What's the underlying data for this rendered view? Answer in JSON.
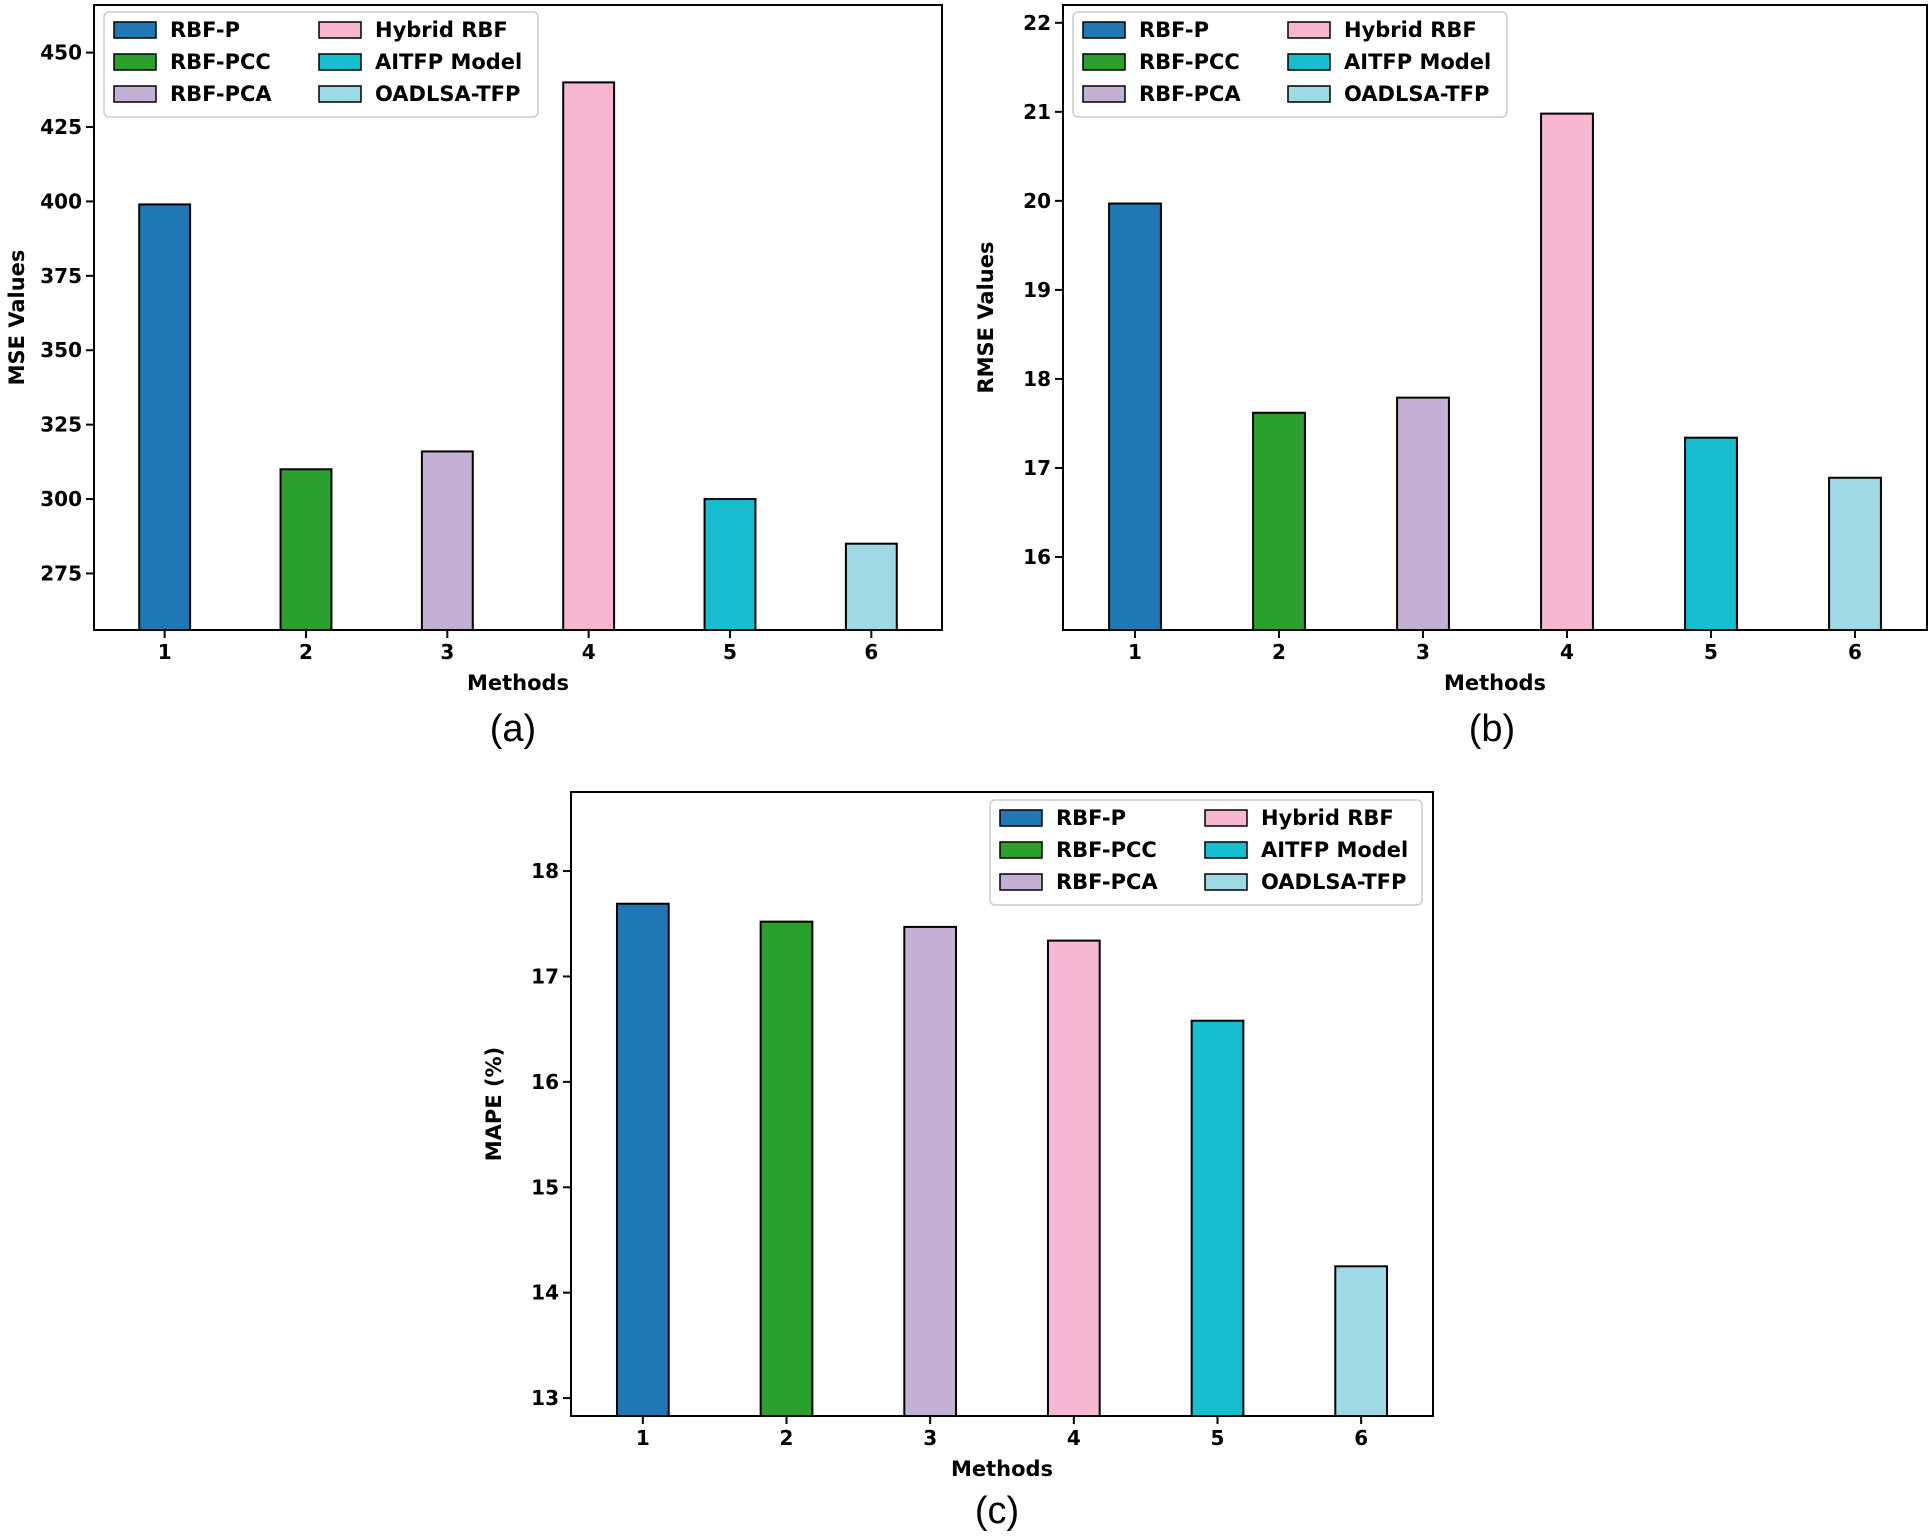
{
  "legend_colors": {
    "RBF-P": "#1f77b4",
    "RBF-PCC": "#2ca02c",
    "RBF-PCA": "#c5b0d5",
    "Hybrid RBF": "#f7b6d2",
    "AITFP Model": "#17becf",
    "OADLSA-TFP": "#9edae5"
  },
  "chart_data": [
    {
      "panel": "(a)",
      "type": "bar",
      "categories": [
        "1",
        "2",
        "3",
        "4",
        "5",
        "6"
      ],
      "series_names": [
        "RBF-P",
        "RBF-PCC",
        "RBF-PCA",
        "Hybrid RBF",
        "AITFP Model",
        "OADLSA-TFP"
      ],
      "values": [
        399,
        310,
        316,
        440,
        300,
        285
      ],
      "xlabel": "Methods",
      "ylabel": "MSE Values",
      "ylim": [
        256,
        466
      ],
      "yticks": [
        275,
        300,
        325,
        350,
        375,
        400,
        425,
        450
      ],
      "legend": "top-left, 2 columns"
    },
    {
      "panel": "(b)",
      "type": "bar",
      "categories": [
        "1",
        "2",
        "3",
        "4",
        "5",
        "6"
      ],
      "series_names": [
        "RBF-P",
        "RBF-PCC",
        "RBF-PCA",
        "Hybrid RBF",
        "AITFP Model",
        "OADLSA-TFP"
      ],
      "values": [
        19.97,
        17.62,
        17.79,
        20.98,
        17.34,
        16.89
      ],
      "xlabel": "Methods",
      "ylabel": "RMSE Values",
      "ylim": [
        15.18,
        22.2
      ],
      "yticks": [
        16,
        17,
        18,
        19,
        20,
        21,
        22
      ],
      "legend": "top-left, 2 columns"
    },
    {
      "panel": "(c)",
      "type": "bar",
      "categories": [
        "1",
        "2",
        "3",
        "4",
        "5",
        "6"
      ],
      "series_names": [
        "RBF-P",
        "RBF-PCC",
        "RBF-PCA",
        "Hybrid RBF",
        "AITFP Model",
        "OADLSA-TFP"
      ],
      "values": [
        17.69,
        17.52,
        17.47,
        17.34,
        16.58,
        14.25
      ],
      "xlabel": "Methods",
      "ylabel": "MAPE (%)",
      "ylim": [
        12.83,
        18.75
      ],
      "yticks": [
        13,
        14,
        15,
        16,
        17,
        18
      ],
      "legend": "top-right, 2 columns"
    }
  ]
}
